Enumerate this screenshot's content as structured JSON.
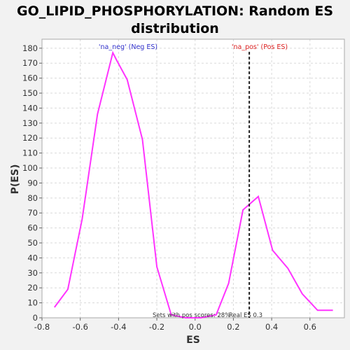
{
  "chart_data": {
    "type": "line",
    "title_line1": "GO_LIPID_PHOSPHORYLATION: Random ES",
    "title_line2": "distribution",
    "xlabel": "ES",
    "ylabel": "P(ES)",
    "xlim": [
      -0.8,
      0.78
    ],
    "ylim": [
      0,
      186
    ],
    "x_ticks": [
      "-0.8",
      "-0.6",
      "-0.4",
      "-0.2",
      "0.0",
      "0.2",
      "0.4",
      "0.6"
    ],
    "y_ticks": [
      "0",
      "10",
      "20",
      "30",
      "40",
      "50",
      "60",
      "70",
      "80",
      "90",
      "100",
      "110",
      "120",
      "130",
      "140",
      "150",
      "160",
      "170",
      "180"
    ],
    "grid": true,
    "series": [
      {
        "color": "#ff33ff",
        "x": [
          -0.735,
          -0.665,
          -0.59,
          -0.51,
          -0.43,
          -0.41,
          -0.355,
          -0.275,
          -0.2,
          -0.125,
          -0.05,
          0.03,
          0.11,
          0.175,
          0.25,
          0.33,
          0.405,
          0.485,
          0.56,
          0.64,
          0.72
        ],
        "y": [
          7,
          19,
          66,
          136,
          177,
          172,
          159,
          119,
          34,
          2,
          0,
          0,
          2,
          23,
          72,
          81,
          45,
          33,
          16,
          5,
          5
        ]
      }
    ],
    "real_es": 0.283,
    "annotations": {
      "neg_label": "'na_neg' (Neg ES)",
      "pos_label": "'na_pos' (Pos ES)",
      "sets_pos": "Sets with pos scores: 28%",
      "real_es": "Real ES 0.3"
    },
    "colors": {
      "line": "#ff33ff",
      "neg": "#3333cc",
      "pos": "#dd2222",
      "plot_bg": "#ffffff",
      "page_bg": "#f2f2f2",
      "grid": "#d9d9d9"
    }
  }
}
